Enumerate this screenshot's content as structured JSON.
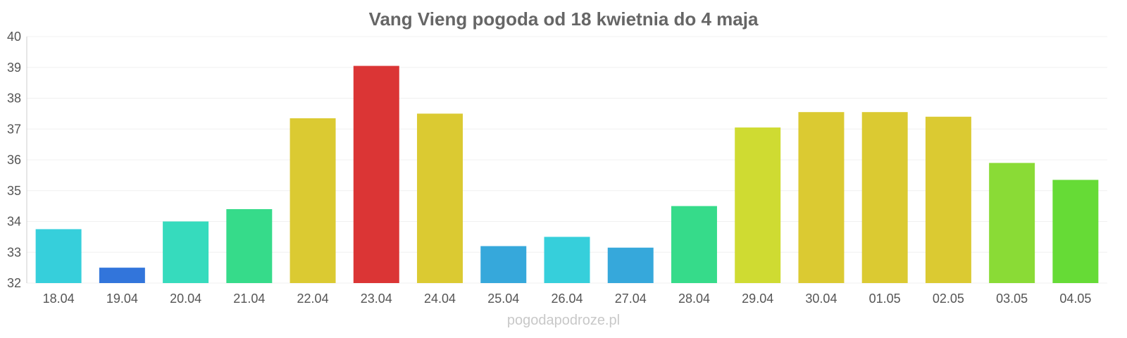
{
  "chart_data": {
    "type": "bar",
    "title": "Vang Vieng pogoda od 18 kwietnia do 4 maja",
    "xlabel": "",
    "ylabel": "",
    "ylim": [
      32,
      40
    ],
    "yticks": [
      "32",
      "33",
      "34",
      "35",
      "36",
      "37",
      "38",
      "39",
      "40"
    ],
    "grid": true,
    "categories": [
      "18.04",
      "19.04",
      "20.04",
      "21.04",
      "22.04",
      "23.04",
      "24.04",
      "25.04",
      "26.04",
      "27.04",
      "28.04",
      "29.04",
      "30.04",
      "01.05",
      "02.05",
      "03.05",
      "04.05"
    ],
    "values": [
      33.75,
      32.5,
      34.0,
      34.4,
      37.35,
      39.05,
      37.5,
      33.2,
      33.5,
      33.15,
      34.5,
      37.05,
      37.55,
      37.55,
      37.4,
      35.9,
      35.35
    ],
    "colors": [
      "#36CFDB",
      "#3275DB",
      "#36DBBD",
      "#36DB8A",
      "#DBCA32",
      "#DB3535",
      "#DBCA32",
      "#36A8DB",
      "#36CFDB",
      "#36A8DB",
      "#36DB8A",
      "#CFDB32",
      "#DBCA32",
      "#DBCA32",
      "#DBCA32",
      "#8ADB36",
      "#66DB36"
    ]
  },
  "credit": "pogodapodroze.pl"
}
